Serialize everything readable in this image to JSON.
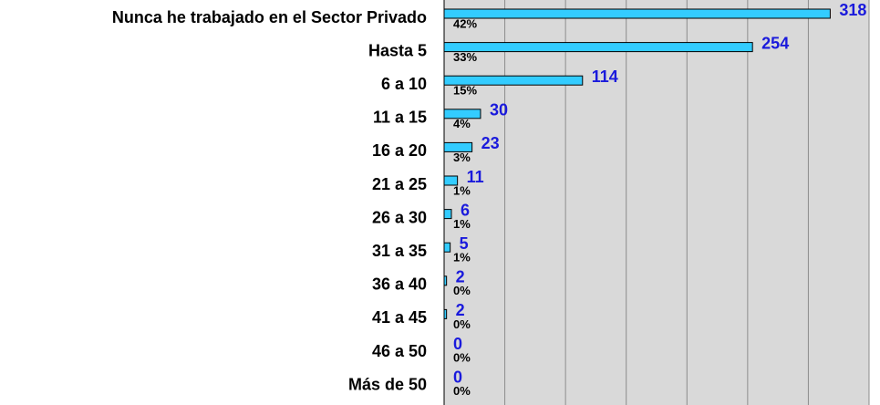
{
  "chart_data": {
    "type": "bar",
    "orientation": "horizontal",
    "categories": [
      "Nunca he trabajado en el Sector Privado",
      "Hasta 5",
      "6 a 10",
      "11 a 15",
      "16 a 20",
      "21 a 25",
      "26 a 30",
      "31 a 35",
      "36 a 40",
      "41 a 45",
      "46 a 50",
      "Más de 50"
    ],
    "values": [
      318,
      254,
      114,
      30,
      23,
      11,
      6,
      5,
      2,
      2,
      0,
      0
    ],
    "percent_labels": [
      "42%",
      "33%",
      "15%",
      "4%",
      "3%",
      "1%",
      "1%",
      "1%",
      "0%",
      "0%",
      "0%",
      "0%"
    ],
    "color": "#33ccff",
    "xlim": [
      0,
      350
    ],
    "xticks": [
      0,
      50,
      100,
      150,
      200,
      250,
      300,
      350
    ],
    "grid": true
  }
}
